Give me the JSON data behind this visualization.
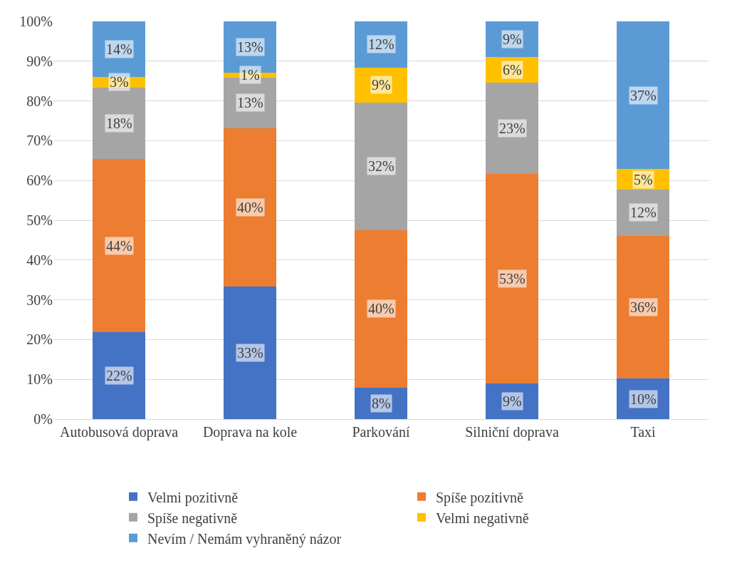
{
  "chart_data": {
    "type": "bar",
    "stacked": true,
    "categories": [
      "Autobusová doprava",
      "Doprava na kole",
      "Parkování",
      "Silniční doprava",
      "Taxi"
    ],
    "series": [
      {
        "name": "Velmi pozitivně",
        "color": "#4472c4",
        "values": [
          21.8,
          33.4,
          7.9,
          8.9,
          10.2
        ],
        "value_labels": [
          "22%",
          "33%",
          "8%",
          "9%",
          "10%"
        ]
      },
      {
        "name": "Spíše pozitivně",
        "color": "#ed7d31",
        "values": [
          43.6,
          39.8,
          39.6,
          52.7,
          35.9
        ],
        "value_labels": [
          "44%",
          "40%",
          "40%",
          "53%",
          "36%"
        ]
      },
      {
        "name": "Spíše negativně",
        "color": "#a5a5a5",
        "values": [
          18.0,
          12.7,
          32.1,
          23.0,
          11.6
        ],
        "value_labels": [
          "18%",
          "13%",
          "32%",
          "23%",
          "12%"
        ]
      },
      {
        "name": "Velmi negativně",
        "color": "#ffc000",
        "values": [
          2.7,
          1.2,
          8.8,
          6.4,
          5.2
        ],
        "value_labels": [
          "3%",
          "1%",
          "9%",
          "6%",
          "5%"
        ]
      },
      {
        "name": "Nevím / Nemám vyhraněný názor",
        "color": "#5b9bd5",
        "values": [
          13.9,
          12.9,
          11.6,
          9.0,
          37.1
        ],
        "value_labels": [
          "14%",
          "13%",
          "12%",
          "9%",
          "37%"
        ]
      }
    ],
    "ylim": [
      0,
      100
    ],
    "yticks": [
      {
        "value": 0,
        "label": "0%"
      },
      {
        "value": 10,
        "label": "10%"
      },
      {
        "value": 20,
        "label": "20%"
      },
      {
        "value": 30,
        "label": "30%"
      },
      {
        "value": 40,
        "label": "40%"
      },
      {
        "value": 50,
        "label": "50%"
      },
      {
        "value": 60,
        "label": "60%"
      },
      {
        "value": 70,
        "label": "70%"
      },
      {
        "value": 80,
        "label": "80%"
      },
      {
        "value": 90,
        "label": "90%"
      },
      {
        "value": 100,
        "label": "100%"
      }
    ],
    "grid": "y",
    "legend": "bottom"
  }
}
